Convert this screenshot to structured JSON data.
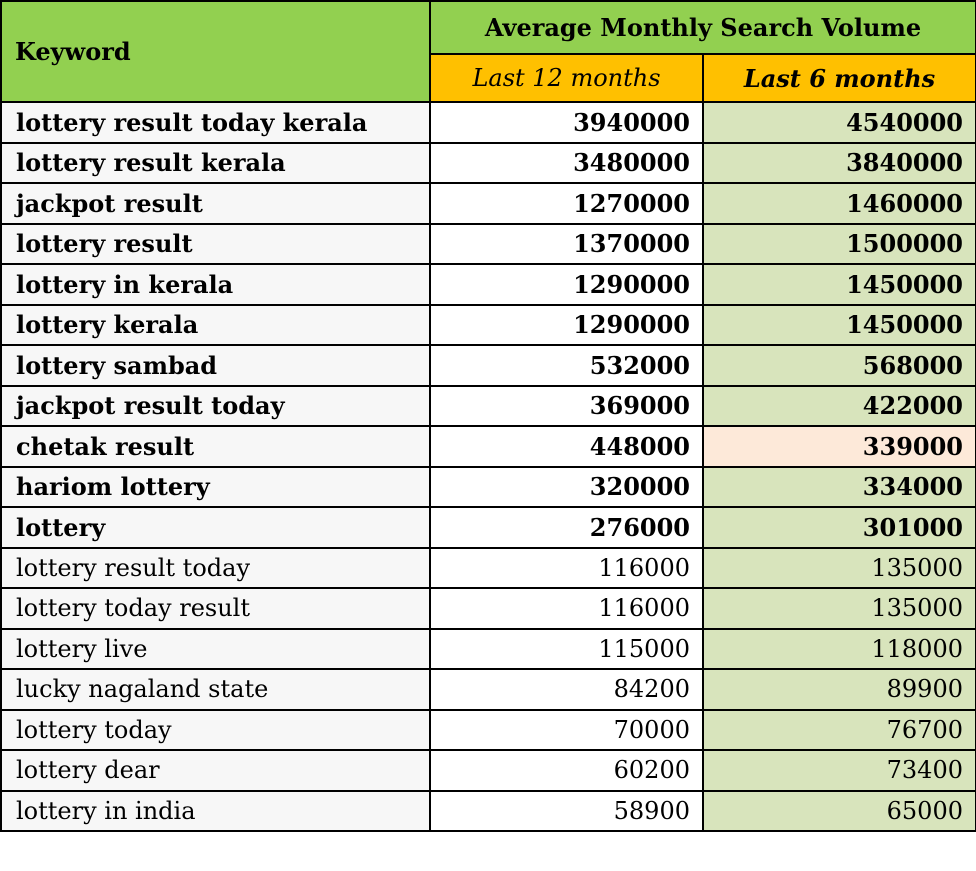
{
  "headers": {
    "keyword": "Keyword",
    "group": "Average Monthly Search Volume",
    "last12": "Last 12 months",
    "last6": "Last 6 months"
  },
  "rows": [
    {
      "keyword": "lottery result today kerala",
      "last12": "3940000",
      "last6": "4540000",
      "bold": true
    },
    {
      "keyword": "lottery result kerala",
      "last12": "3480000",
      "last6": "3840000",
      "bold": true
    },
    {
      "keyword": "jackpot result",
      "last12": "1270000",
      "last6": "1460000",
      "bold": true
    },
    {
      "keyword": "lottery result",
      "last12": "1370000",
      "last6": "1500000",
      "bold": true
    },
    {
      "keyword": "lottery in kerala",
      "last12": "1290000",
      "last6": "1450000",
      "bold": true
    },
    {
      "keyword": "lottery kerala",
      "last12": "1290000",
      "last6": "1450000",
      "bold": true
    },
    {
      "keyword": "lottery sambad",
      "last12": "532000",
      "last6": "568000",
      "bold": true
    },
    {
      "keyword": "jackpot result today",
      "last12": "369000",
      "last6": "422000",
      "bold": true
    },
    {
      "keyword": "chetak result",
      "last12": "448000",
      "last6": "339000",
      "bold": true,
      "last6_highlight": "decrease"
    },
    {
      "keyword": "hariom lottery",
      "last12": "320000",
      "last6": "334000",
      "bold": true
    },
    {
      "keyword": "lottery",
      "last12": "276000",
      "last6": "301000",
      "bold": true
    },
    {
      "keyword": "lottery result today",
      "last12": "116000",
      "last6": "135000",
      "bold": false
    },
    {
      "keyword": "lottery today result",
      "last12": "116000",
      "last6": "135000",
      "bold": false
    },
    {
      "keyword": "lottery live",
      "last12": "115000",
      "last6": "118000",
      "bold": false
    },
    {
      "keyword": "lucky nagaland state",
      "last12": "84200",
      "last6": "89900",
      "bold": false
    },
    {
      "keyword": "lottery today",
      "last12": "70000",
      "last6": "76700",
      "bold": false
    },
    {
      "keyword": "lottery dear",
      "last12": "60200",
      "last6": "73400",
      "bold": false
    },
    {
      "keyword": "lottery in india",
      "last12": "58900",
      "last6": "65000",
      "bold": false
    }
  ],
  "colors": {
    "header_green": "#92d050",
    "header_orange": "#ffc000",
    "last6_green": "#d8e4bc",
    "last6_decrease": "#fde9d9",
    "keyword_bg": "#f7f7f7"
  }
}
